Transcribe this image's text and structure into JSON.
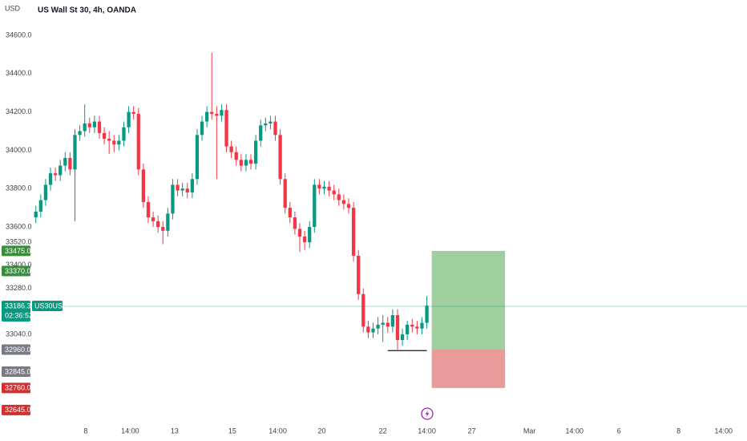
{
  "chart_data": {
    "type": "candlestick",
    "title": "US Wall St 30, 4h, OANDA",
    "currency": "USD",
    "up_color": "#089981",
    "down_color": "#f23645",
    "xlim": [
      -1.1,
      145.5
    ],
    "ylim": [
      32567,
      34784
    ],
    "xticks": [
      {
        "value": 10.2,
        "label": "8"
      },
      {
        "value": 19.3,
        "label": "14:00"
      },
      {
        "value": 28.4,
        "label": "13"
      },
      {
        "value": 40.2,
        "label": "15"
      },
      {
        "value": 49.5,
        "label": "14:00"
      },
      {
        "value": 58.5,
        "label": "20"
      },
      {
        "value": 71,
        "label": "22"
      },
      {
        "value": 80,
        "label": "14:00"
      },
      {
        "value": 89.2,
        "label": "27"
      },
      {
        "value": 101,
        "label": "Mar"
      },
      {
        "value": 110.2,
        "label": "14:00"
      },
      {
        "value": 119.3,
        "label": "6"
      },
      {
        "value": 131.5,
        "label": "8"
      },
      {
        "value": 140.7,
        "label": "14:00"
      }
    ],
    "yticks": [
      {
        "value": 34600,
        "label": "34600.0"
      },
      {
        "value": 34400,
        "label": "34400.0"
      },
      {
        "value": 34200,
        "label": "34200.0"
      },
      {
        "value": 34000,
        "label": "34000.0"
      },
      {
        "value": 33800,
        "label": "33800.0"
      },
      {
        "value": 33600,
        "label": "33600.0"
      },
      {
        "value": 33520,
        "label": "33520.0"
      },
      {
        "value": 33400,
        "label": "33400.0"
      },
      {
        "value": 33280,
        "label": "33280.0"
      },
      {
        "value": 33040,
        "label": "33040.0"
      }
    ],
    "open": [
      33650,
      33680,
      33740,
      33820,
      33880,
      33870,
      33920,
      33960,
      33900,
      34080,
      34100,
      34140,
      34120,
      34150,
      34090,
      34060,
      34050,
      34030,
      34050,
      34120,
      34200,
      34190,
      33900,
      33730,
      33650,
      33630,
      33600,
      33580,
      33670,
      33820,
      33790,
      33800,
      33780,
      33850,
      34080,
      34150,
      34200,
      34190,
      34180,
      34210,
      34020,
      33990,
      33950,
      33920,
      33950,
      33930,
      34050,
      34130,
      34140,
      34150,
      34080,
      33850,
      33700,
      33650,
      33590,
      33550,
      33520,
      33600,
      33820,
      33800,
      33810,
      33790,
      33770,
      33740,
      33720,
      33700,
      33450,
      33250,
      33080,
      33050,
      33070,
      33090,
      33100,
      33080,
      33140,
      33010,
      33040,
      33090,
      33080,
      33070,
      33100
    ],
    "high": [
      33710,
      33770,
      33850,
      33910,
      33910,
      33950,
      33990,
      33990,
      34110,
      34130,
      34240,
      34170,
      34180,
      34180,
      34120,
      34100,
      34080,
      34080,
      34150,
      34230,
      34230,
      34220,
      33930,
      33760,
      33680,
      33660,
      33630,
      33700,
      33850,
      33850,
      33830,
      33830,
      33880,
      34110,
      34180,
      34230,
      34510,
      34230,
      34240,
      34240,
      34050,
      34020,
      33980,
      33980,
      33980,
      34080,
      34160,
      34170,
      34180,
      34180,
      34110,
      33880,
      33730,
      33680,
      33620,
      33580,
      33630,
      33850,
      33850,
      33840,
      33840,
      33820,
      33800,
      33770,
      33750,
      33730,
      33480,
      33280,
      33110,
      33100,
      33130,
      33140,
      33130,
      33170,
      33170,
      33070,
      33110,
      33120,
      33110,
      33130,
      33240
    ],
    "low": [
      33620,
      33650,
      33710,
      33790,
      33840,
      33840,
      33890,
      33870,
      33630,
      34050,
      34070,
      34090,
      34090,
      34060,
      34030,
      33980,
      33990,
      34000,
      34020,
      34090,
      34160,
      33870,
      33700,
      33620,
      33600,
      33570,
      33510,
      33550,
      33640,
      33760,
      33760,
      33750,
      33750,
      33820,
      34050,
      34120,
      34160,
      33850,
      34150,
      33990,
      33960,
      33920,
      33890,
      33890,
      33900,
      33900,
      34020,
      34100,
      34110,
      34050,
      33820,
      33670,
      33620,
      33560,
      33470,
      33480,
      33490,
      33570,
      33770,
      33770,
      33760,
      33740,
      33710,
      33690,
      33670,
      33420,
      33220,
      33050,
      33020,
      33020,
      33040,
      33000,
      33050,
      33050,
      32960,
      32980,
      33010,
      33050,
      33040,
      33040,
      33070
    ],
    "close": [
      33680,
      33740,
      33820,
      33880,
      33870,
      33920,
      33960,
      33900,
      34080,
      34100,
      34140,
      34120,
      34150,
      34090,
      34060,
      34050,
      34030,
      34050,
      34120,
      34200,
      34190,
      33900,
      33730,
      33650,
      33630,
      33600,
      33580,
      33670,
      33820,
      33790,
      33800,
      33780,
      33850,
      34080,
      34150,
      34200,
      34190,
      34180,
      34210,
      34020,
      33990,
      33950,
      33920,
      33950,
      33930,
      34050,
      34130,
      34140,
      34150,
      34080,
      33850,
      33700,
      33650,
      33590,
      33550,
      33520,
      33600,
      33820,
      33800,
      33810,
      33790,
      33770,
      33740,
      33720,
      33700,
      33450,
      33250,
      33080,
      33050,
      33070,
      33090,
      33100,
      33080,
      33140,
      33010,
      33040,
      33090,
      33080,
      33070,
      33100,
      33190
    ],
    "current_price": {
      "value": 33186.3,
      "label": "33186.3",
      "symbol": "US30USD",
      "countdown": "02:36:52",
      "color": "#089981"
    },
    "price_labels": [
      {
        "value": 33475,
        "label": "33475.0",
        "color": "#388e3c"
      },
      {
        "value": 33370,
        "label": "33370.0",
        "color": "#388e3c"
      },
      {
        "value": 32960,
        "label": "32960.0",
        "color": "#787b86"
      },
      {
        "value": 32845,
        "label": "32845.0",
        "color": "#787b86"
      },
      {
        "value": 32760,
        "label": "32760.0",
        "color": "#d32f2f"
      },
      {
        "value": 32645,
        "label": "32645.0",
        "color": "#d32f2f"
      }
    ],
    "position": {
      "target": 33475,
      "entry": 32960,
      "stop": 32760,
      "x_start": 81,
      "x_end": 96,
      "profit_color": "#9fce9f",
      "loss_color": "#eb9a9a"
    },
    "support_line": {
      "value": 32955,
      "x": [
        72,
        80
      ],
      "color": "#131722"
    }
  }
}
